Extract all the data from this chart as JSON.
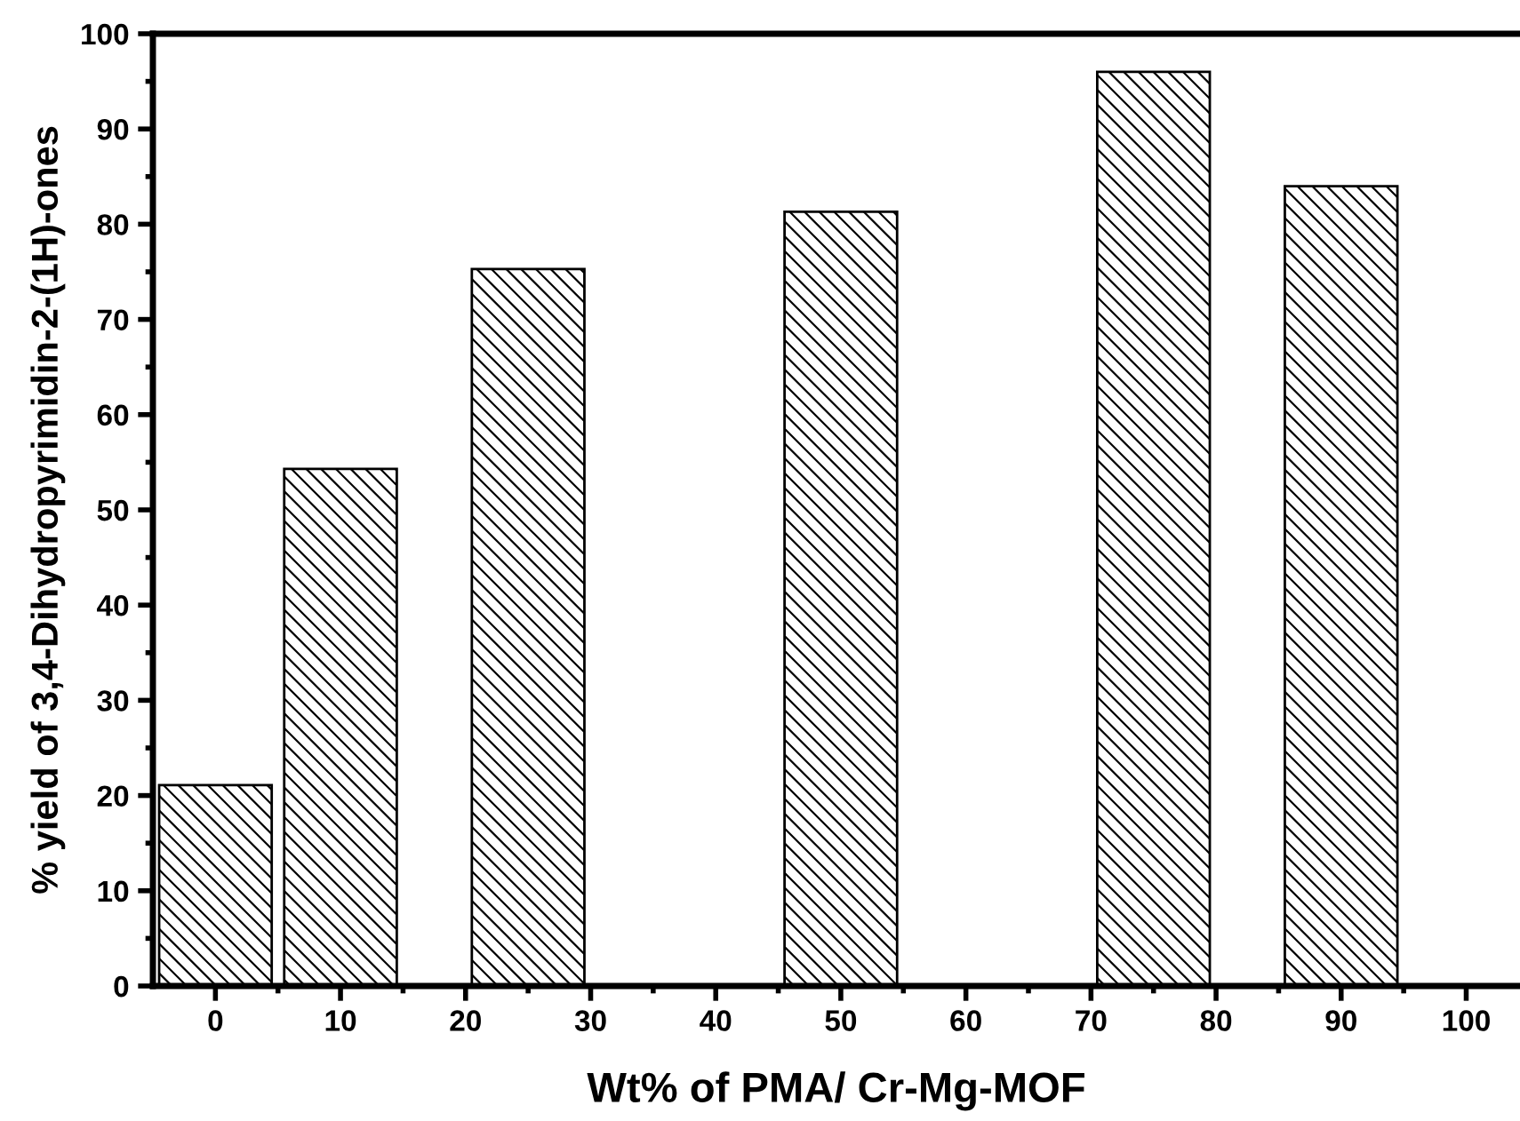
{
  "chart_data": {
    "type": "bar",
    "xlabel": "Wt% of PMA/ Cr-Mg-MOF",
    "ylabel": "% yield of 3,4-Dihydropyrimidin-2-(1H)-ones",
    "x": [
      0,
      10,
      25,
      50,
      75,
      90
    ],
    "values": [
      21.1,
      54.3,
      75.3,
      81.3,
      96.0,
      84.0
    ],
    "color": "#000000",
    "xlim": [
      -5,
      104.3
    ],
    "xticks": [
      0,
      10,
      20,
      30,
      40,
      50,
      60,
      70,
      80,
      90,
      100
    ],
    "ylim": [
      0,
      100
    ],
    "yticks": [
      0,
      10,
      20,
      30,
      40,
      50,
      60,
      70,
      80,
      90,
      100
    ],
    "grid": false,
    "legend": false
  }
}
